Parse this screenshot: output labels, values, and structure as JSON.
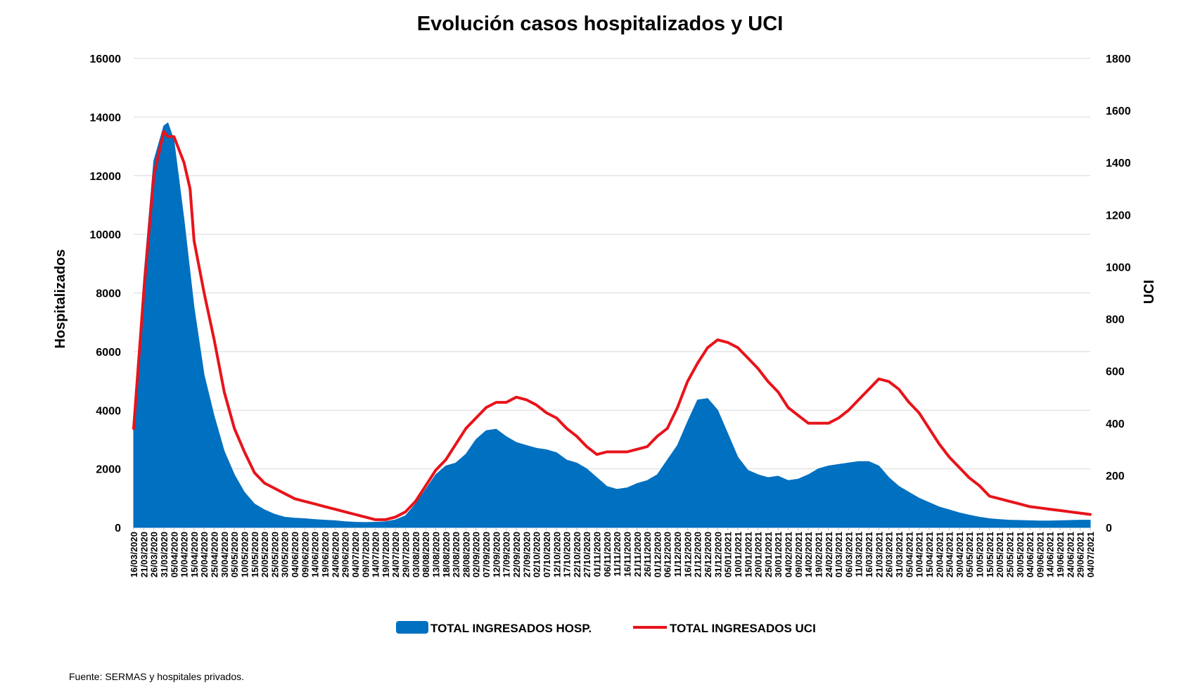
{
  "chart_data": {
    "type": "area",
    "title": "Evolución casos hospitalizados y UCI",
    "ylabel_left": "Hospitalizados",
    "ylabel_right": "UCI",
    "ylim_left": [
      0,
      16000
    ],
    "ylim_right": [
      0,
      1800
    ],
    "yticks_left": [
      0,
      2000,
      4000,
      6000,
      8000,
      10000,
      12000,
      14000,
      16000
    ],
    "yticks_right": [
      0,
      200,
      400,
      600,
      800,
      1000,
      1200,
      1400,
      1600,
      1800
    ],
    "grid": true,
    "legend_position": "bottom",
    "x_tick_labels": [
      "16/03/2020",
      "21/03/2020",
      "26/03/2020",
      "31/03/2020",
      "05/04/2020",
      "10/04/2020",
      "15/04/2020",
      "20/04/2020",
      "25/04/2020",
      "30/04/2020",
      "05/05/2020",
      "10/05/2020",
      "15/05/2020",
      "20/05/2020",
      "25/05/2020",
      "30/05/2020",
      "04/06/2020",
      "09/06/2020",
      "14/06/2020",
      "19/06/2020",
      "24/06/2020",
      "29/06/2020",
      "04/07/2020",
      "09/07/2020",
      "14/07/2020",
      "19/07/2020",
      "24/07/2020",
      "29/07/2020",
      "03/08/2020",
      "08/08/2020",
      "13/08/2020",
      "18/08/2020",
      "23/08/2020",
      "28/08/2020",
      "02/09/2020",
      "07/09/2020",
      "12/09/2020",
      "17/09/2020",
      "22/09/2020",
      "27/09/2020",
      "02/10/2020",
      "07/10/2020",
      "12/10/2020",
      "17/10/2020",
      "22/10/2020",
      "27/10/2020",
      "01/11/2020",
      "06/11/2020",
      "11/11/2020",
      "16/11/2020",
      "21/11/2020",
      "26/11/2020",
      "01/12/2020",
      "06/12/2020",
      "11/12/2020",
      "16/12/2020",
      "21/12/2020",
      "26/12/2020",
      "31/12/2020",
      "05/01/2021",
      "10/01/2021",
      "15/01/2021",
      "20/01/2021",
      "25/01/2021",
      "30/01/2021",
      "04/02/2021",
      "09/02/2021",
      "14/02/2021",
      "19/02/2021",
      "24/02/2021",
      "01/03/2021",
      "06/03/2021",
      "11/03/2021",
      "16/03/2021",
      "21/03/2021",
      "26/03/2021",
      "31/03/2021",
      "05/04/2021",
      "10/04/2021",
      "15/04/2021",
      "20/04/2021",
      "25/04/2021",
      "30/04/2021",
      "05/05/2021",
      "10/05/2021",
      "15/05/2021",
      "20/05/2021",
      "25/05/2021",
      "30/05/2021",
      "04/06/2021",
      "09/06/2021",
      "14/06/2021",
      "19/06/2021",
      "24/06/2021",
      "29/06/2021",
      "04/07/2021"
    ],
    "series": [
      {
        "name": "TOTAL INGRESADOS HOSP.",
        "type": "area",
        "axis": "left",
        "color": "#0070C0",
        "x": [
          "16/03/2020",
          "21/03/2020",
          "26/03/2020",
          "31/03/2020",
          "02/04/2020",
          "05/04/2020",
          "10/04/2020",
          "15/04/2020",
          "20/04/2020",
          "25/04/2020",
          "30/04/2020",
          "05/05/2020",
          "10/05/2020",
          "15/05/2020",
          "20/05/2020",
          "25/05/2020",
          "30/05/2020",
          "04/06/2020",
          "09/06/2020",
          "14/06/2020",
          "19/06/2020",
          "24/06/2020",
          "29/06/2020",
          "04/07/2020",
          "09/07/2020",
          "14/07/2020",
          "19/07/2020",
          "24/07/2020",
          "29/07/2020",
          "03/08/2020",
          "08/08/2020",
          "13/08/2020",
          "18/08/2020",
          "23/08/2020",
          "28/08/2020",
          "02/09/2020",
          "07/09/2020",
          "12/09/2020",
          "17/09/2020",
          "22/09/2020",
          "27/09/2020",
          "02/10/2020",
          "07/10/2020",
          "12/10/2020",
          "17/10/2020",
          "22/10/2020",
          "27/10/2020",
          "01/11/2020",
          "06/11/2020",
          "11/11/2020",
          "16/11/2020",
          "21/11/2020",
          "26/11/2020",
          "01/12/2020",
          "06/12/2020",
          "11/12/2020",
          "16/12/2020",
          "21/12/2020",
          "26/12/2020",
          "31/12/2020",
          "05/01/2021",
          "10/01/2021",
          "15/01/2021",
          "20/01/2021",
          "25/01/2021",
          "30/01/2021",
          "04/02/2021",
          "09/02/2021",
          "14/02/2021",
          "19/02/2021",
          "24/02/2021",
          "01/03/2021",
          "06/03/2021",
          "11/03/2021",
          "16/03/2021",
          "21/03/2021",
          "26/03/2021",
          "31/03/2021",
          "05/04/2021",
          "10/04/2021",
          "15/04/2021",
          "20/04/2021",
          "25/04/2021",
          "30/04/2021",
          "05/05/2021",
          "10/05/2021",
          "15/05/2021",
          "20/05/2021",
          "25/05/2021",
          "30/05/2021",
          "04/06/2021",
          "09/06/2021",
          "14/06/2021",
          "19/06/2021",
          "24/06/2021",
          "29/06/2021",
          "04/07/2021"
        ],
        "values": [
          3500,
          8500,
          12500,
          13700,
          13800,
          13200,
          10500,
          7500,
          5200,
          3800,
          2600,
          1800,
          1200,
          800,
          600,
          450,
          350,
          320,
          300,
          270,
          250,
          230,
          200,
          180,
          170,
          180,
          200,
          260,
          400,
          800,
          1300,
          1800,
          2100,
          2200,
          2500,
          3000,
          3300,
          3350,
          3100,
          2900,
          2800,
          2700,
          2650,
          2550,
          2300,
          2200,
          2000,
          1700,
          1400,
          1300,
          1350,
          1500,
          1600,
          1800,
          2300,
          2800,
          3600,
          4350,
          4400,
          4000,
          3200,
          2400,
          1950,
          1800,
          1700,
          1750,
          1600,
          1650,
          1800,
          2000,
          2100,
          2150,
          2200,
          2250,
          2250,
          2100,
          1700,
          1400,
          1200,
          1000,
          850,
          700,
          600,
          500,
          420,
          350,
          300,
          270,
          250,
          240,
          230,
          220,
          220,
          230,
          240,
          250,
          250
        ],
        "note_alignment": "values follow the x list"
      },
      {
        "name": "TOTAL INGRESADOS UCI",
        "type": "line",
        "axis": "right",
        "color": "#E8131A",
        "x": [
          "16/03/2020",
          "21/03/2020",
          "26/03/2020",
          "31/03/2020",
          "02/04/2020",
          "05/04/2020",
          "10/04/2020",
          "13/04/2020",
          "15/04/2020",
          "20/04/2020",
          "25/04/2020",
          "30/04/2020",
          "05/05/2020",
          "10/05/2020",
          "15/05/2020",
          "20/05/2020",
          "25/05/2020",
          "30/05/2020",
          "04/06/2020",
          "09/06/2020",
          "14/06/2020",
          "19/06/2020",
          "24/06/2020",
          "29/06/2020",
          "04/07/2020",
          "09/07/2020",
          "14/07/2020",
          "19/07/2020",
          "24/07/2020",
          "29/07/2020",
          "03/08/2020",
          "08/08/2020",
          "13/08/2020",
          "18/08/2020",
          "23/08/2020",
          "28/08/2020",
          "02/09/2020",
          "07/09/2020",
          "12/09/2020",
          "17/09/2020",
          "22/09/2020",
          "27/09/2020",
          "02/10/2020",
          "07/10/2020",
          "12/10/2020",
          "17/10/2020",
          "22/10/2020",
          "27/10/2020",
          "01/11/2020",
          "06/11/2020",
          "11/11/2020",
          "16/11/2020",
          "21/11/2020",
          "26/11/2020",
          "01/12/2020",
          "06/12/2020",
          "11/12/2020",
          "16/12/2020",
          "21/12/2020",
          "26/12/2020",
          "31/12/2020",
          "05/01/2021",
          "10/01/2021",
          "15/01/2021",
          "20/01/2021",
          "25/01/2021",
          "30/01/2021",
          "04/02/2021",
          "09/02/2021",
          "14/02/2021",
          "19/02/2021",
          "24/02/2021",
          "01/03/2021",
          "06/03/2021",
          "11/03/2021",
          "16/03/2021",
          "21/03/2021",
          "26/03/2021",
          "31/03/2021",
          "05/04/2021",
          "10/04/2021",
          "15/04/2021",
          "20/04/2021",
          "25/04/2021",
          "30/04/2021",
          "05/05/2021",
          "10/05/2021",
          "15/05/2021",
          "20/05/2021",
          "25/05/2021",
          "30/05/2021",
          "04/06/2021",
          "09/06/2021",
          "14/06/2021",
          "19/06/2021",
          "24/06/2021",
          "29/06/2021",
          "04/07/2021"
        ],
        "values": [
          380,
          900,
          1350,
          1520,
          1500,
          1500,
          1400,
          1300,
          1100,
          900,
          720,
          520,
          380,
          290,
          210,
          170,
          150,
          130,
          110,
          100,
          90,
          80,
          70,
          60,
          50,
          40,
          30,
          30,
          40,
          60,
          100,
          160,
          220,
          260,
          320,
          380,
          420,
          460,
          480,
          480,
          500,
          490,
          470,
          440,
          420,
          380,
          350,
          310,
          280,
          290,
          290,
          290,
          300,
          310,
          350,
          380,
          460,
          560,
          630,
          690,
          720,
          710,
          690,
          650,
          610,
          560,
          520,
          460,
          430,
          400,
          400,
          400,
          420,
          450,
          490,
          530,
          570,
          560,
          530,
          480,
          440,
          380,
          320,
          270,
          230,
          190,
          160,
          120,
          110,
          100,
          90,
          80,
          75,
          70,
          65,
          60,
          55,
          50
        ],
        "note_alignment": "values follow the x list"
      }
    ]
  },
  "source_note": "Fuente: SERMAS y hospitales privados."
}
